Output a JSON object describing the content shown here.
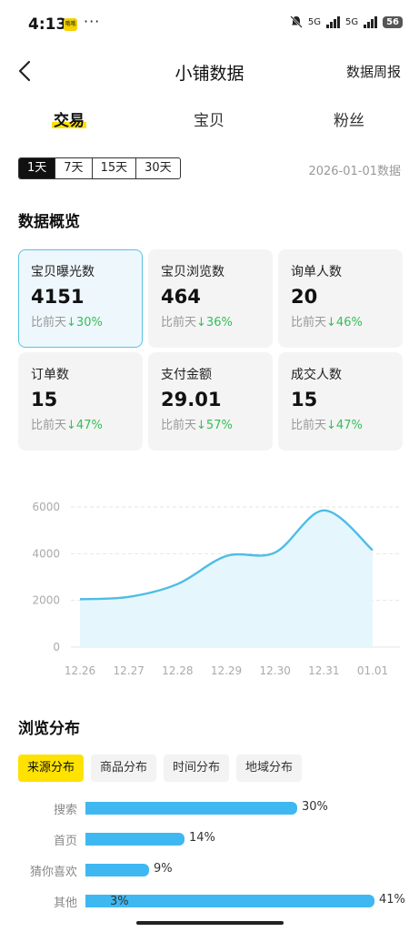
{
  "status_bar": {
    "time": "4:13",
    "note_badge": "哦哦",
    "more": "···",
    "signal_1": "5G",
    "signal_2": "5G",
    "battery": "56"
  },
  "nav": {
    "title": "小铺数据",
    "weekly_report": "数据周报",
    "back_icon": "chevron-left-icon"
  },
  "tabs": [
    {
      "label": "交易",
      "active": true
    },
    {
      "label": "宝贝",
      "active": false
    },
    {
      "label": "粉丝",
      "active": false
    }
  ],
  "ranges": [
    {
      "label": "1天",
      "active": true
    },
    {
      "label": "7天",
      "active": false
    },
    {
      "label": "15天",
      "active": false
    },
    {
      "label": "30天",
      "active": false
    }
  ],
  "date_label": "2026-01-01数据",
  "overview": {
    "title": "数据概览",
    "compare_prefix": "比前天",
    "down_arrow": "↓",
    "cards": [
      {
        "label": "宝贝曝光数",
        "value": "4151",
        "change": "30%",
        "active": true
      },
      {
        "label": "宝贝浏览数",
        "value": "464",
        "change": "36%",
        "active": false
      },
      {
        "label": "询单人数",
        "value": "20",
        "change": "46%",
        "active": false
      },
      {
        "label": "订单数",
        "value": "15",
        "change": "47%",
        "active": false
      },
      {
        "label": "支付金额",
        "value": "29.01",
        "change": "57%",
        "active": false
      },
      {
        "label": "成交人数",
        "value": "15",
        "change": "47%",
        "active": false
      }
    ]
  },
  "chart_data": [
    {
      "type": "area",
      "title": "",
      "xlabel": "",
      "ylabel": "",
      "x": [
        "12.26",
        "12.27",
        "12.28",
        "12.29",
        "12.30",
        "12.31",
        "01.01"
      ],
      "y_ticks": [
        "0",
        "2000",
        "4000",
        "6000"
      ],
      "ylim": [
        0,
        6000
      ],
      "grid": true,
      "series": [
        {
          "values": [
            2050,
            2150,
            2700,
            3900,
            4050,
            5850,
            4151
          ]
        }
      ],
      "colors": {
        "line": "#4dbde4",
        "fill": "#e6f6fd"
      }
    },
    {
      "type": "bar",
      "orientation": "horizontal",
      "categories": [
        "搜索",
        "首页",
        "猜你喜欢",
        "其他"
      ],
      "values": [
        30,
        14,
        9,
        41
      ],
      "labels": [
        "30%",
        "14%",
        "9%",
        "41%"
      ],
      "secondary_label": {
        "category": "其他",
        "text": "3%"
      },
      "xlim": [
        0,
        41
      ],
      "color": "#3fb8f2"
    }
  ],
  "distribution": {
    "title": "浏览分布",
    "tabs": [
      {
        "label": "来源分布",
        "active": true
      },
      {
        "label": "商品分布",
        "active": false
      },
      {
        "label": "时间分布",
        "active": false
      },
      {
        "label": "地域分布",
        "active": false
      }
    ]
  },
  "colors": {
    "accent_yellow": "#ffe200",
    "positive_green": "#35bd59",
    "active_card_border": "#58c2dc"
  }
}
